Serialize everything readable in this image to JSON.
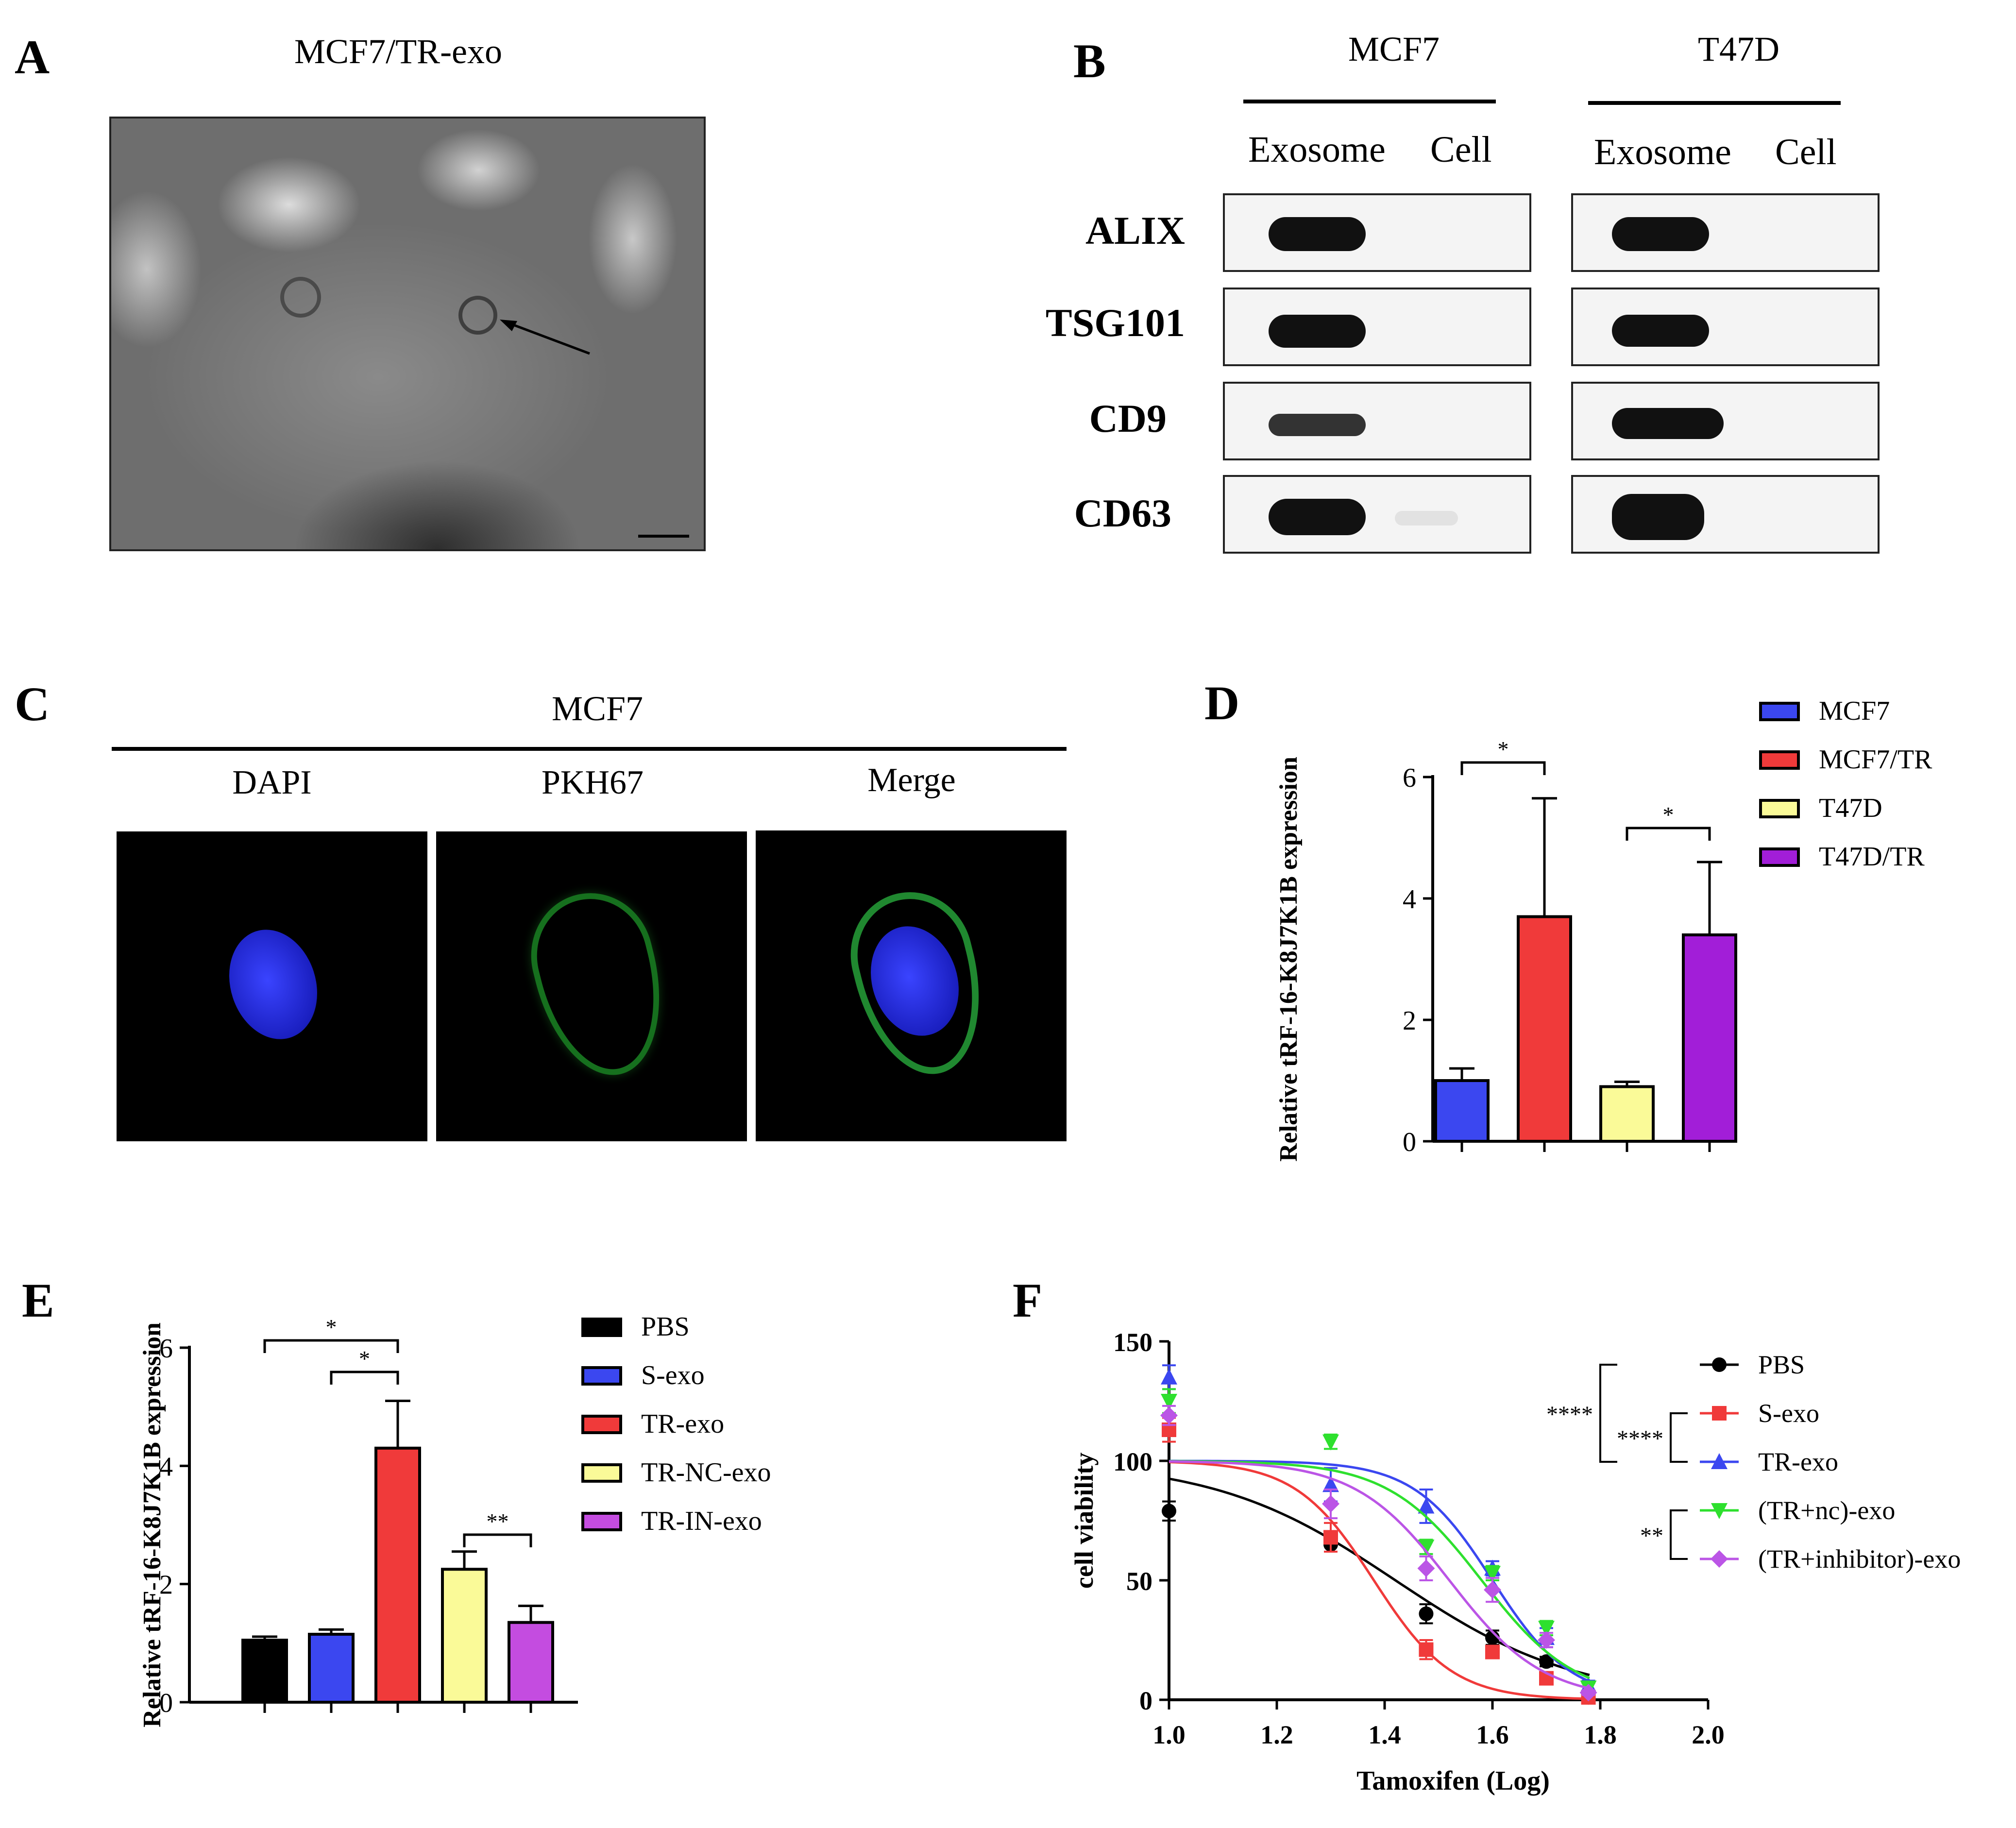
{
  "panels": {
    "A": {
      "label": "A",
      "title": "MCF7/TR-exo"
    },
    "B": {
      "label": "B",
      "groups": [
        {
          "name": "MCF7",
          "lanes": [
            "Exosome",
            "Cell"
          ]
        },
        {
          "name": "T47D",
          "lanes": [
            "Exosome",
            "Cell"
          ]
        }
      ],
      "proteins": [
        "ALIX",
        "TSG101",
        "CD9",
        "CD63"
      ]
    },
    "C": {
      "label": "C",
      "title": "MCF7",
      "channels": [
        "DAPI",
        "PKH67",
        "Merge"
      ]
    },
    "D": {
      "label": "D"
    },
    "E": {
      "label": "E"
    },
    "F": {
      "label": "F"
    }
  },
  "colors": {
    "blue": "#3b47f0",
    "red": "#f03a3a",
    "yellow": "#fafa98",
    "purple": "#a21ed8",
    "black": "#000000",
    "magenta": "#c44ce0",
    "green": "#2ee02e",
    "violet": "#bb55e6"
  },
  "chart_data": [
    {
      "id": "D",
      "type": "bar",
      "ylabel": "Relative tRF-16-K8J7K1B expression",
      "ylim": [
        0,
        6
      ],
      "yticks": [
        "0",
        "2",
        "4",
        "6"
      ],
      "categories": [
        "MCF7",
        "MCF7/TR",
        "T47D",
        "T47D/TR"
      ],
      "values": [
        1.0,
        3.7,
        0.9,
        3.4
      ],
      "errors": [
        0.2,
        1.95,
        0.08,
        1.2
      ],
      "legend": [
        "MCF7",
        "MCF7/TR",
        "T47D",
        "T47D/TR"
      ],
      "significance": [
        {
          "from": 0,
          "to": 1,
          "label": "*"
        },
        {
          "from": 2,
          "to": 3,
          "label": "*"
        }
      ]
    },
    {
      "id": "E",
      "type": "bar",
      "ylabel": "Relative tRF-16-K8J7K1B expression",
      "ylim": [
        0,
        6
      ],
      "yticks": [
        "0",
        "2",
        "4",
        "6"
      ],
      "categories": [
        "PBS",
        "S-exo",
        "TR-exo",
        "TR-NC-exo",
        "TR-IN-exo"
      ],
      "values": [
        1.05,
        1.15,
        4.3,
        2.25,
        1.35
      ],
      "errors": [
        0.06,
        0.08,
        0.8,
        0.3,
        0.28
      ],
      "legend": [
        "PBS",
        "S-exo",
        "TR-exo",
        "TR-NC-exo",
        "TR-IN-exo"
      ],
      "significance": [
        {
          "from": 0,
          "to": 2,
          "label": "*"
        },
        {
          "from": 1,
          "to": 2,
          "label": "*"
        },
        {
          "from": 3,
          "to": 4,
          "label": "**"
        }
      ]
    },
    {
      "id": "F",
      "type": "scatter",
      "xlabel": "Tamoxifen (Log)",
      "ylabel": "cell viability",
      "xlim": [
        1.0,
        2.0
      ],
      "ylim": [
        0,
        150
      ],
      "xticks": [
        "1.0",
        "1.2",
        "1.4",
        "1.6",
        "1.8",
        "2.0"
      ],
      "yticks": [
        "0",
        "50",
        "100",
        "150"
      ],
      "x": [
        1.0,
        1.3,
        1.477,
        1.6,
        1.7,
        1.778
      ],
      "series": [
        {
          "name": "PBS",
          "values": [
            79,
            65,
            36,
            26,
            16,
            1
          ],
          "errors": [
            4,
            3,
            4,
            3,
            2,
            1
          ],
          "marker": "circle",
          "logIC50": 1.42,
          "top": 100,
          "slope": 2.6
        },
        {
          "name": "S-exo",
          "values": [
            113,
            68,
            21,
            20,
            9,
            1
          ],
          "errors": [
            5,
            6,
            4,
            2,
            2,
            1
          ],
          "marker": "square",
          "logIC50": 1.38,
          "top": 100,
          "slope": 6
        },
        {
          "name": "TR-exo",
          "values": [
            135,
            90,
            81,
            55,
            26,
            6
          ],
          "errors": [
            5,
            7,
            7,
            3,
            4,
            2
          ],
          "marker": "triangle-up",
          "logIC50": 1.6,
          "top": 100,
          "slope": 6
        },
        {
          "name": "(TR+nc)-exo",
          "values": [
            125,
            108,
            64,
            53,
            30,
            5
          ],
          "errors": [
            5,
            3,
            3,
            3,
            3,
            2
          ],
          "marker": "triangle-down",
          "logIC50": 1.58,
          "top": 100,
          "slope": 5
        },
        {
          "name": "(TR+inhibitor)-exo",
          "values": [
            119,
            82,
            55,
            46,
            25,
            3
          ],
          "errors": [
            4,
            6,
            5,
            5,
            3,
            1
          ],
          "marker": "diamond",
          "logIC50": 1.52,
          "top": 100,
          "slope": 5
        }
      ],
      "significance": [
        "****",
        "****",
        "**"
      ]
    }
  ]
}
